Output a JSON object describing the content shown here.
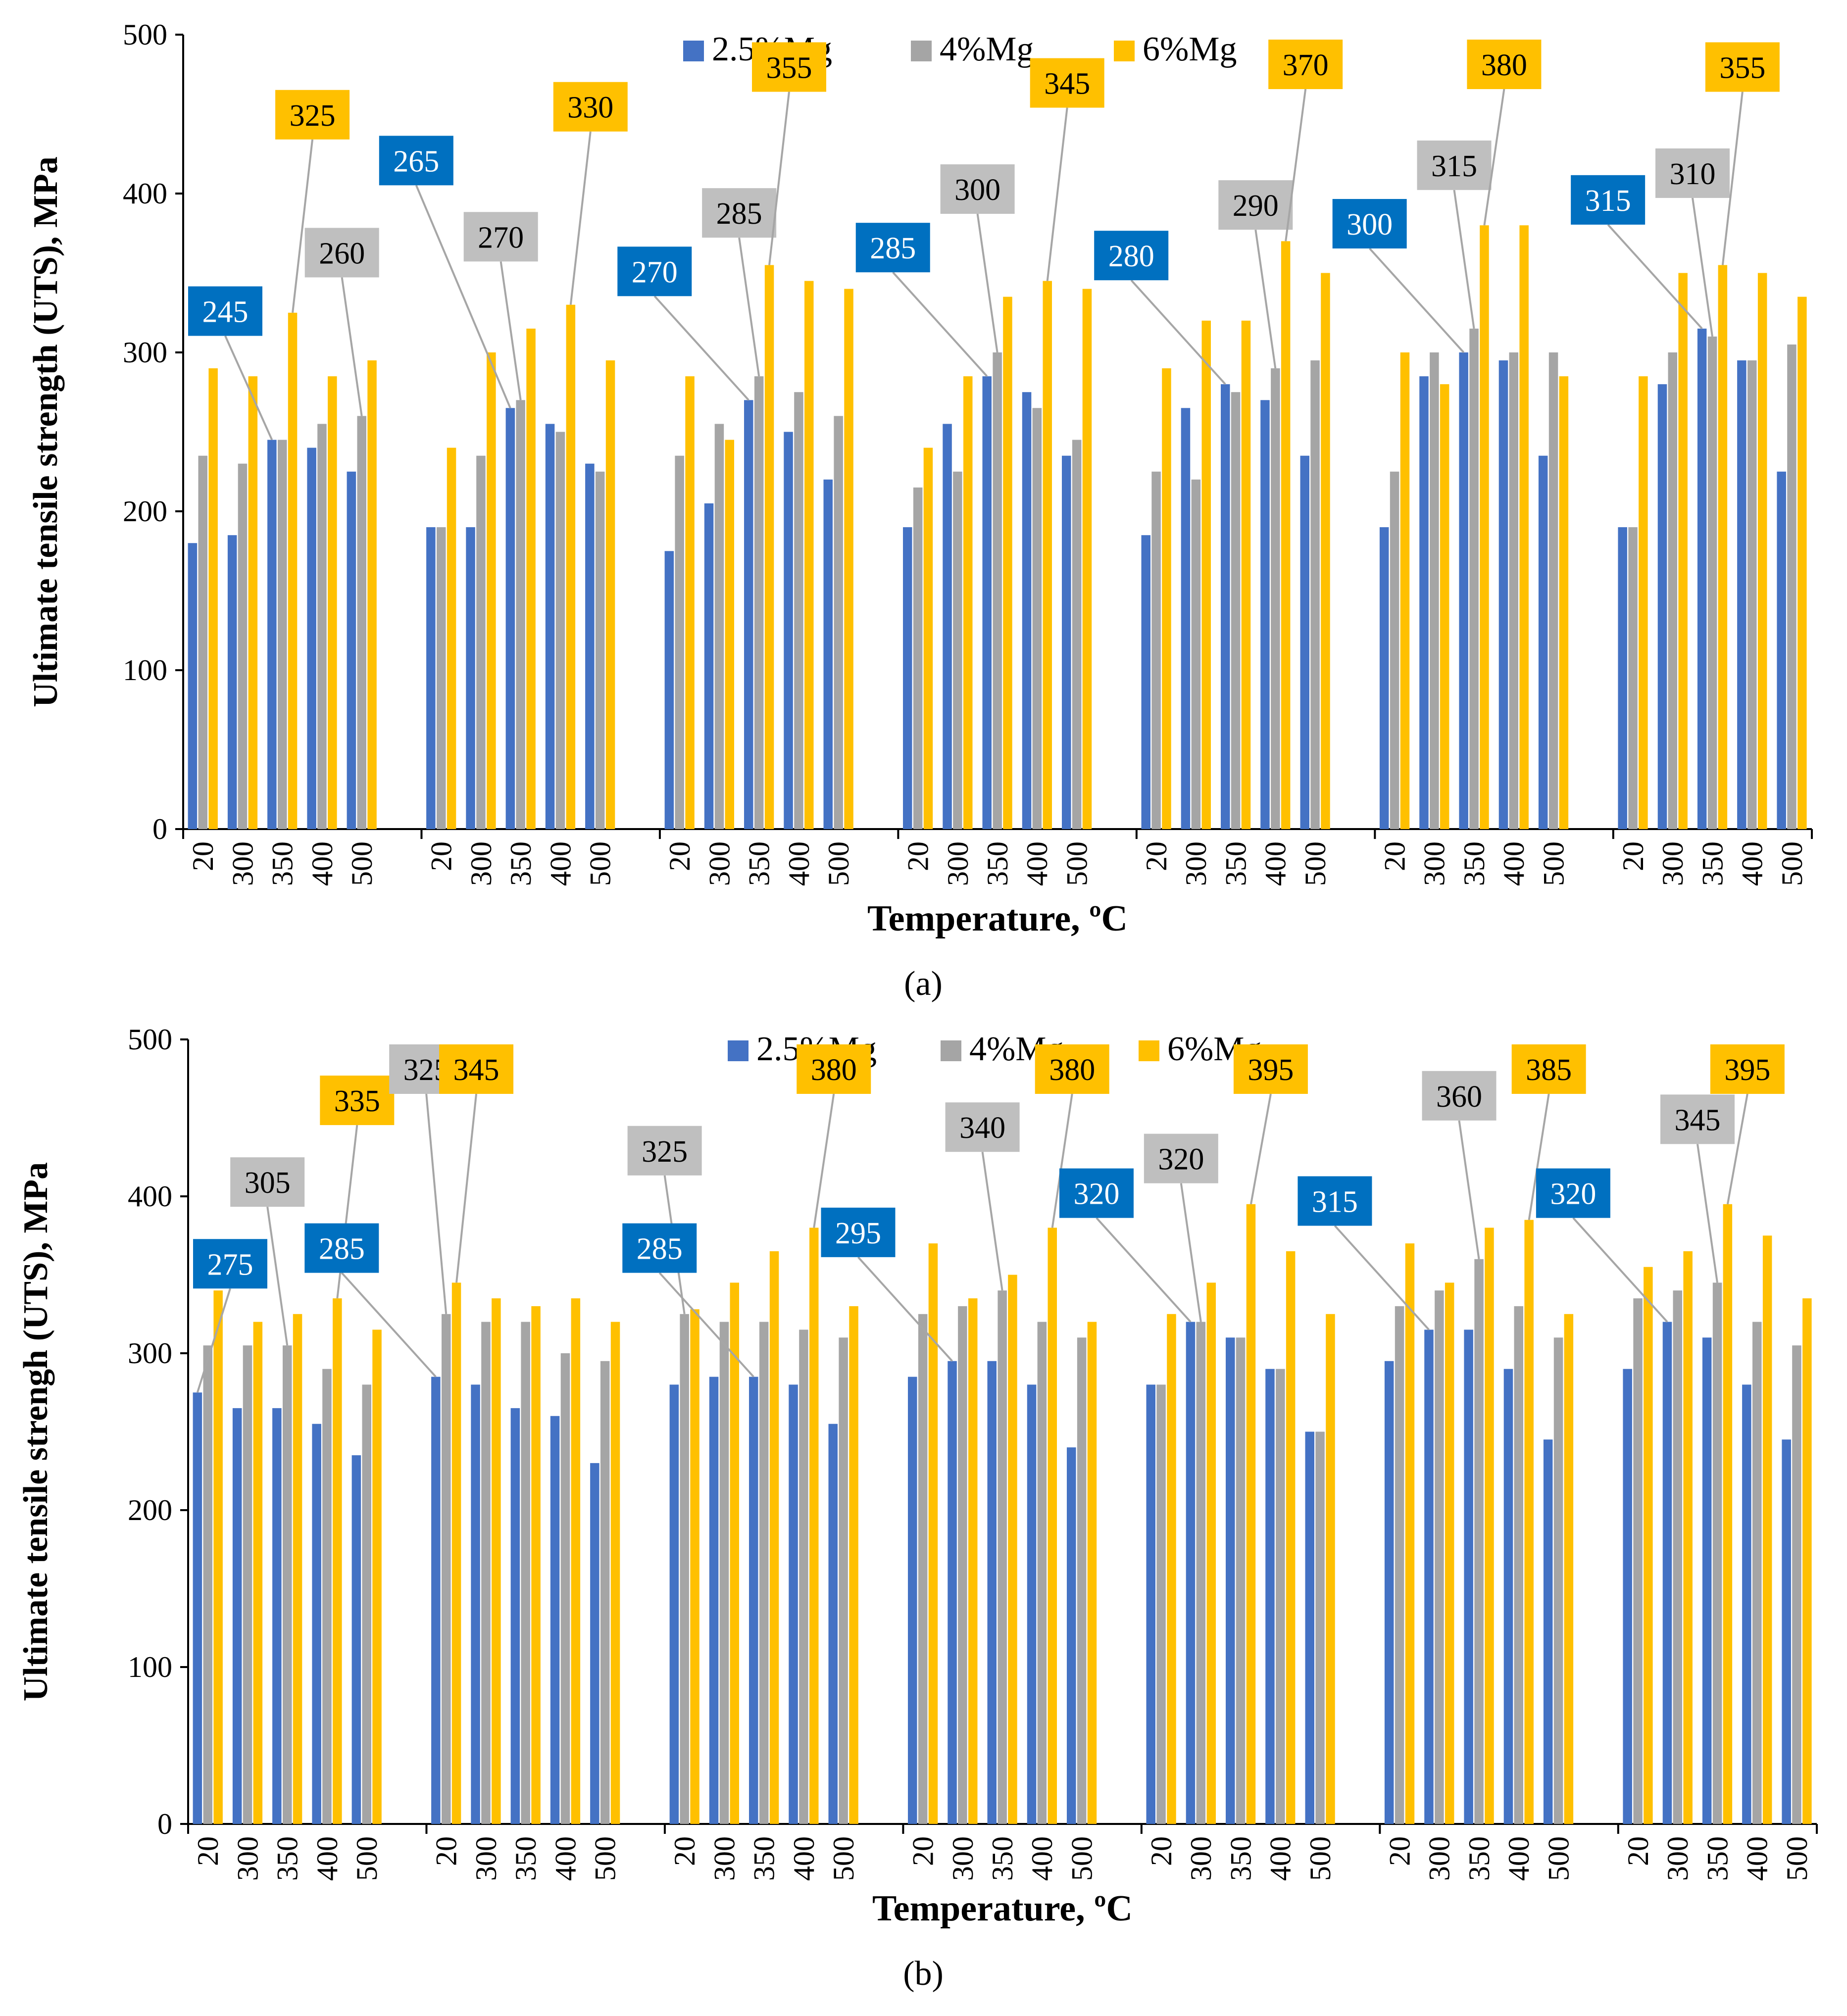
{
  "colors": {
    "mg25": "#4472C4",
    "mg4": "#A5A5A5",
    "mg6": "#FFC000",
    "label_mg25": "#0070C0",
    "label_mg4": "#BFBFBF",
    "label_mg6": "#FFC000",
    "axis": "#000000"
  },
  "chart_data": [
    {
      "type": "bar",
      "caption": "(a)",
      "title": "",
      "xlabel": "Temperature, ºC",
      "ylabel": "Ultimate tensile strength (UTS), MPa",
      "ylim": [
        0,
        500
      ],
      "yticks": [
        "0",
        "100",
        "200",
        "300",
        "400",
        "500"
      ],
      "grid": false,
      "legend": "top-center",
      "categories": [
        "20",
        "300",
        "350",
        "400",
        "500",
        "20",
        "300",
        "350",
        "400",
        "500",
        "20",
        "300",
        "350",
        "400",
        "500",
        "20",
        "300",
        "350",
        "400",
        "500",
        "20",
        "300",
        "350",
        "400",
        "500",
        "20",
        "300",
        "350",
        "400",
        "500",
        "20",
        "300",
        "350",
        "400",
        "500"
      ],
      "series": [
        {
          "name": "2.5%Mg",
          "key": "mg25",
          "values": [
            180,
            185,
            245,
            240,
            225,
            190,
            190,
            265,
            255,
            230,
            175,
            205,
            270,
            250,
            220,
            190,
            255,
            285,
            275,
            235,
            185,
            265,
            280,
            270,
            235,
            190,
            285,
            300,
            295,
            235,
            190,
            280,
            315,
            295,
            225
          ]
        },
        {
          "name": "4%Mg",
          "key": "mg4",
          "values": [
            235,
            230,
            245,
            255,
            260,
            190,
            235,
            270,
            250,
            225,
            235,
            255,
            285,
            275,
            260,
            215,
            225,
            300,
            265,
            245,
            225,
            220,
            275,
            290,
            295,
            225,
            300,
            315,
            300,
            300,
            190,
            300,
            310,
            295,
            305
          ]
        },
        {
          "name": "6%Mg",
          "key": "mg6",
          "values": [
            290,
            285,
            325,
            285,
            295,
            240,
            300,
            315,
            330,
            295,
            285,
            245,
            355,
            345,
            340,
            240,
            285,
            335,
            345,
            340,
            290,
            320,
            320,
            370,
            350,
            300,
            280,
            380,
            380,
            285,
            285,
            350,
            355,
            350,
            335
          ]
        }
      ],
      "annotations": [
        {
          "text": "245",
          "series": "mg25",
          "index": 2
        },
        {
          "text": "325",
          "series": "mg6",
          "index": 2
        },
        {
          "text": "260",
          "series": "mg4",
          "index": 4
        },
        {
          "text": "265",
          "series": "mg25",
          "index": 7
        },
        {
          "text": "270",
          "series": "mg4",
          "index": 7
        },
        {
          "text": "330",
          "series": "mg6",
          "index": 8
        },
        {
          "text": "270",
          "series": "mg25",
          "index": 12
        },
        {
          "text": "285",
          "series": "mg4",
          "index": 12
        },
        {
          "text": "355",
          "series": "mg6",
          "index": 12
        },
        {
          "text": "285",
          "series": "mg25",
          "index": 17
        },
        {
          "text": "300",
          "series": "mg4",
          "index": 17
        },
        {
          "text": "345",
          "series": "mg6",
          "index": 18
        },
        {
          "text": "280",
          "series": "mg25",
          "index": 22
        },
        {
          "text": "290",
          "series": "mg4",
          "index": 23
        },
        {
          "text": "370",
          "series": "mg6",
          "index": 23
        },
        {
          "text": "300",
          "series": "mg25",
          "index": 27
        },
        {
          "text": "315",
          "series": "mg4",
          "index": 27
        },
        {
          "text": "380",
          "series": "mg6",
          "index": 27
        },
        {
          "text": "315",
          "series": "mg25",
          "index": 32
        },
        {
          "text": "310",
          "series": "mg4",
          "index": 32
        },
        {
          "text": "355",
          "series": "mg6",
          "index": 32
        }
      ]
    },
    {
      "type": "bar",
      "caption": "(b)",
      "title": "",
      "xlabel": "Temperature, ºC",
      "ylabel": "Ultimate tensile strengh (UTS), MPa",
      "ylim": [
        0,
        500
      ],
      "yticks": [
        "0",
        "100",
        "200",
        "300",
        "400",
        "500"
      ],
      "grid": false,
      "legend": "top-center",
      "categories": [
        "20",
        "300",
        "350",
        "400",
        "500",
        "20",
        "300",
        "350",
        "400",
        "500",
        "20",
        "300",
        "350",
        "400",
        "500",
        "20",
        "300",
        "350",
        "400",
        "500",
        "20",
        "300",
        "350",
        "400",
        "500",
        "20",
        "300",
        "350",
        "400",
        "500",
        "20",
        "300",
        "350",
        "400",
        "500"
      ],
      "series": [
        {
          "name": "2.5%Mg",
          "key": "mg25",
          "values": [
            275,
            265,
            265,
            255,
            235,
            285,
            280,
            265,
            260,
            230,
            280,
            285,
            285,
            280,
            255,
            285,
            295,
            295,
            280,
            240,
            280,
            320,
            310,
            290,
            250,
            295,
            315,
            315,
            290,
            245,
            290,
            320,
            310,
            280,
            245
          ]
        },
        {
          "name": "4%Mg",
          "key": "mg4",
          "values": [
            305,
            305,
            305,
            290,
            280,
            325,
            320,
            320,
            300,
            295,
            325,
            320,
            320,
            315,
            310,
            325,
            330,
            340,
            320,
            310,
            280,
            320,
            310,
            290,
            250,
            330,
            340,
            360,
            330,
            310,
            335,
            340,
            345,
            320,
            305
          ]
        },
        {
          "name": "6%Mg",
          "key": "mg6",
          "values": [
            340,
            320,
            325,
            335,
            315,
            345,
            335,
            330,
            335,
            320,
            328,
            345,
            365,
            380,
            330,
            370,
            335,
            350,
            380,
            320,
            325,
            345,
            395,
            365,
            325,
            370,
            345,
            380,
            385,
            325,
            355,
            365,
            395,
            375,
            335
          ]
        }
      ],
      "annotations": [
        {
          "text": "275",
          "series": "mg25",
          "index": 0
        },
        {
          "text": "305",
          "series": "mg4",
          "index": 2
        },
        {
          "text": "335",
          "series": "mg6",
          "index": 3
        },
        {
          "text": "285",
          "series": "mg25",
          "index": 5
        },
        {
          "text": "325",
          "series": "mg4",
          "index": 5
        },
        {
          "text": "345",
          "series": "mg6",
          "index": 5
        },
        {
          "text": "325",
          "series": "mg4",
          "index": 10
        },
        {
          "text": "285",
          "series": "mg25",
          "index": 12
        },
        {
          "text": "380",
          "series": "mg6",
          "index": 13
        },
        {
          "text": "295",
          "series": "mg25",
          "index": 16
        },
        {
          "text": "340",
          "series": "mg4",
          "index": 17
        },
        {
          "text": "380",
          "series": "mg6",
          "index": 18
        },
        {
          "text": "320",
          "series": "mg25",
          "index": 21
        },
        {
          "text": "320",
          "series": "mg4",
          "index": 21
        },
        {
          "text": "395",
          "series": "mg6",
          "index": 22
        },
        {
          "text": "315",
          "series": "mg25",
          "index": 26
        },
        {
          "text": "360",
          "series": "mg4",
          "index": 27
        },
        {
          "text": "385",
          "series": "mg6",
          "index": 28
        },
        {
          "text": "320",
          "series": "mg25",
          "index": 31
        },
        {
          "text": "345",
          "series": "mg4",
          "index": 32
        },
        {
          "text": "395",
          "series": "mg6",
          "index": 32
        }
      ]
    }
  ]
}
